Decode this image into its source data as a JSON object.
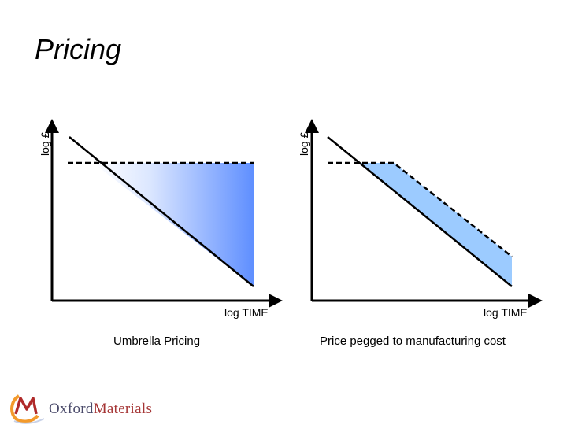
{
  "slide": {
    "title": "Pricing"
  },
  "left_diagram": {
    "y_axis_label": "log £",
    "x_axis_label": "log TIME",
    "caption": "Umbrella Pricing"
  },
  "right_diagram": {
    "y_axis_label": "log £",
    "x_axis_label": "log TIME",
    "caption": "Price pegged to manufacturing cost"
  },
  "logo": {
    "word_1": "Oxford",
    "word_2": "Materials",
    "mark_letter": "M"
  },
  "colors": {
    "gradient_start": "#ffffff",
    "gradient_end": "#5f8fff",
    "band_fill": "#9ccbff",
    "line": "#000000",
    "logo_orange": "#f39a2b",
    "logo_red": "#b02a2a"
  }
}
